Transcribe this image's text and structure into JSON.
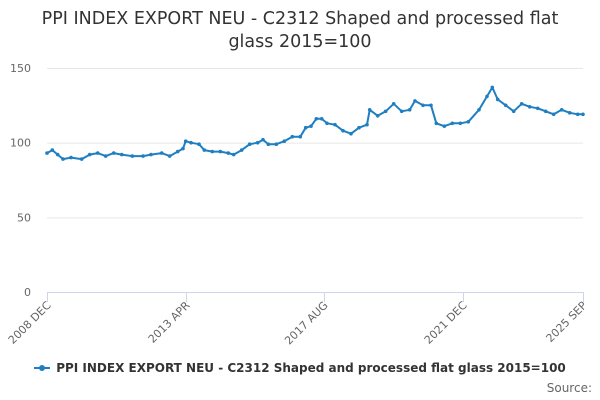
{
  "title_line1": "PPI INDEX EXPORT NEU - C2312 Shaped and processed flat",
  "title_line2": "glass 2015=100",
  "legend_label": "PPI INDEX EXPORT NEU - C2312 Shaped and processed flat glass 2015=100",
  "credits": "Source:",
  "colors": {
    "series": "#1f7fc1",
    "grid": "#e6e6e6",
    "axis": "#ccd6eb"
  },
  "chart_data": {
    "type": "line",
    "title": "PPI INDEX EXPORT NEU - C2312 Shaped and processed flat glass 2015=100",
    "xlabel": "",
    "ylabel": "",
    "ylim": [
      0,
      150
    ],
    "yticks": [
      0,
      50,
      100,
      150
    ],
    "xtick_labels": [
      "2008 DEC",
      "2013 APR",
      "2017 AUG",
      "2021 DEC",
      "2025 SEP"
    ],
    "xtick_positions": [
      "2008-12",
      "2013-04",
      "2017-08",
      "2021-12",
      "2025-09"
    ],
    "grid": true,
    "legend_position": "bottom",
    "series": [
      {
        "name": "PPI INDEX EXPORT NEU - C2312 Shaped and processed flat glass 2015=100",
        "points": [
          [
            "2008-12",
            93
          ],
          [
            "2009-02",
            95
          ],
          [
            "2009-04",
            92
          ],
          [
            "2009-06",
            89
          ],
          [
            "2009-09",
            90
          ],
          [
            "2010-01",
            89
          ],
          [
            "2010-04",
            92
          ],
          [
            "2010-07",
            93
          ],
          [
            "2010-10",
            91
          ],
          [
            "2011-01",
            93
          ],
          [
            "2011-04",
            92
          ],
          [
            "2011-08",
            91
          ],
          [
            "2011-12",
            91
          ],
          [
            "2012-03",
            92
          ],
          [
            "2012-07",
            93
          ],
          [
            "2012-10",
            91
          ],
          [
            "2013-01",
            94
          ],
          [
            "2013-03",
            96
          ],
          [
            "2013-04",
            101
          ],
          [
            "2013-06",
            100
          ],
          [
            "2013-09",
            99
          ],
          [
            "2013-11",
            95
          ],
          [
            "2014-02",
            94
          ],
          [
            "2014-05",
            94
          ],
          [
            "2014-08",
            93
          ],
          [
            "2014-10",
            92
          ],
          [
            "2015-01",
            95
          ],
          [
            "2015-04",
            99
          ],
          [
            "2015-07",
            100
          ],
          [
            "2015-09",
            102
          ],
          [
            "2015-11",
            99
          ],
          [
            "2016-02",
            99
          ],
          [
            "2016-05",
            101
          ],
          [
            "2016-08",
            104
          ],
          [
            "2016-11",
            104
          ],
          [
            "2017-01",
            110
          ],
          [
            "2017-03",
            111
          ],
          [
            "2017-05",
            116
          ],
          [
            "2017-07",
            116
          ],
          [
            "2017-09",
            113
          ],
          [
            "2017-12",
            112
          ],
          [
            "2018-03",
            108
          ],
          [
            "2018-06",
            106
          ],
          [
            "2018-09",
            110
          ],
          [
            "2018-12",
            112
          ],
          [
            "2019-01",
            122
          ],
          [
            "2019-04",
            118
          ],
          [
            "2019-07",
            121
          ],
          [
            "2019-10",
            126
          ],
          [
            "2020-01",
            121
          ],
          [
            "2020-04",
            122
          ],
          [
            "2020-06",
            128
          ],
          [
            "2020-09",
            125
          ],
          [
            "2020-12",
            125
          ],
          [
            "2021-02",
            113
          ],
          [
            "2021-05",
            111
          ],
          [
            "2021-08",
            113
          ],
          [
            "2021-11",
            113
          ],
          [
            "2022-02",
            114
          ],
          [
            "2022-06",
            122
          ],
          [
            "2022-09",
            131
          ],
          [
            "2022-11",
            137
          ],
          [
            "2023-01",
            129
          ],
          [
            "2023-04",
            125
          ],
          [
            "2023-07",
            121
          ],
          [
            "2023-10",
            126
          ],
          [
            "2024-01",
            124
          ],
          [
            "2024-04",
            123
          ],
          [
            "2024-07",
            121
          ],
          [
            "2024-10",
            119
          ],
          [
            "2025-01",
            122
          ],
          [
            "2025-04",
            120
          ],
          [
            "2025-07",
            119
          ],
          [
            "2025-09",
            119
          ]
        ]
      }
    ]
  }
}
